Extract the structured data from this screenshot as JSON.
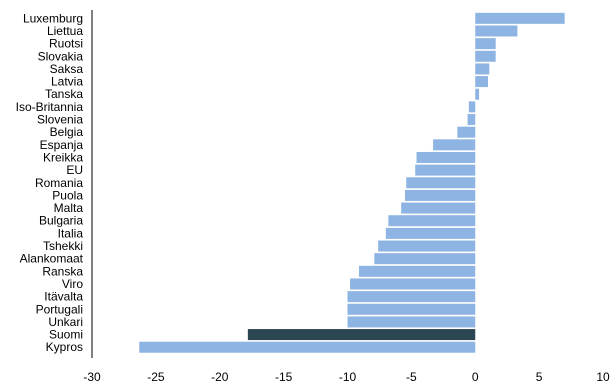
{
  "chart_data": {
    "type": "bar",
    "orientation": "horizontal",
    "title": "",
    "xlabel": "",
    "ylabel": "",
    "xlim": [
      -30,
      10
    ],
    "xticks": [
      -30,
      -25,
      -20,
      -15,
      -10,
      -5,
      0,
      5,
      10
    ],
    "grid": false,
    "legend": "none",
    "categories": [
      "Luxemburg",
      "Liettua",
      "Ruotsi",
      "Slovakia",
      "Saksa",
      "Latvia",
      "Tanska",
      "Iso-Britannia",
      "Slovenia",
      "Belgia",
      "Espanja",
      "Kreikka",
      "EU",
      "Romania",
      "Puola",
      "Malta",
      "Bulgaria",
      "Italia",
      "Tshekki",
      "Alankomaat",
      "Ranska",
      "Viro",
      "Itävalta",
      "Portugali",
      "Unkari",
      "Suomi",
      "Kypros"
    ],
    "values": [
      7.0,
      3.3,
      1.6,
      1.6,
      1.1,
      1.0,
      0.3,
      -0.5,
      -0.6,
      -1.4,
      -3.3,
      -4.6,
      -4.7,
      -5.4,
      -5.5,
      -5.8,
      -6.8,
      -7.0,
      -7.6,
      -7.9,
      -9.1,
      -9.8,
      -10.0,
      -10.0,
      -10.0,
      -17.8,
      -26.3
    ],
    "highlight_category": "Suomi",
    "colors": {
      "bar": "#8DB4E2",
      "highlight": "#2D4654",
      "axis": "#000000"
    }
  }
}
